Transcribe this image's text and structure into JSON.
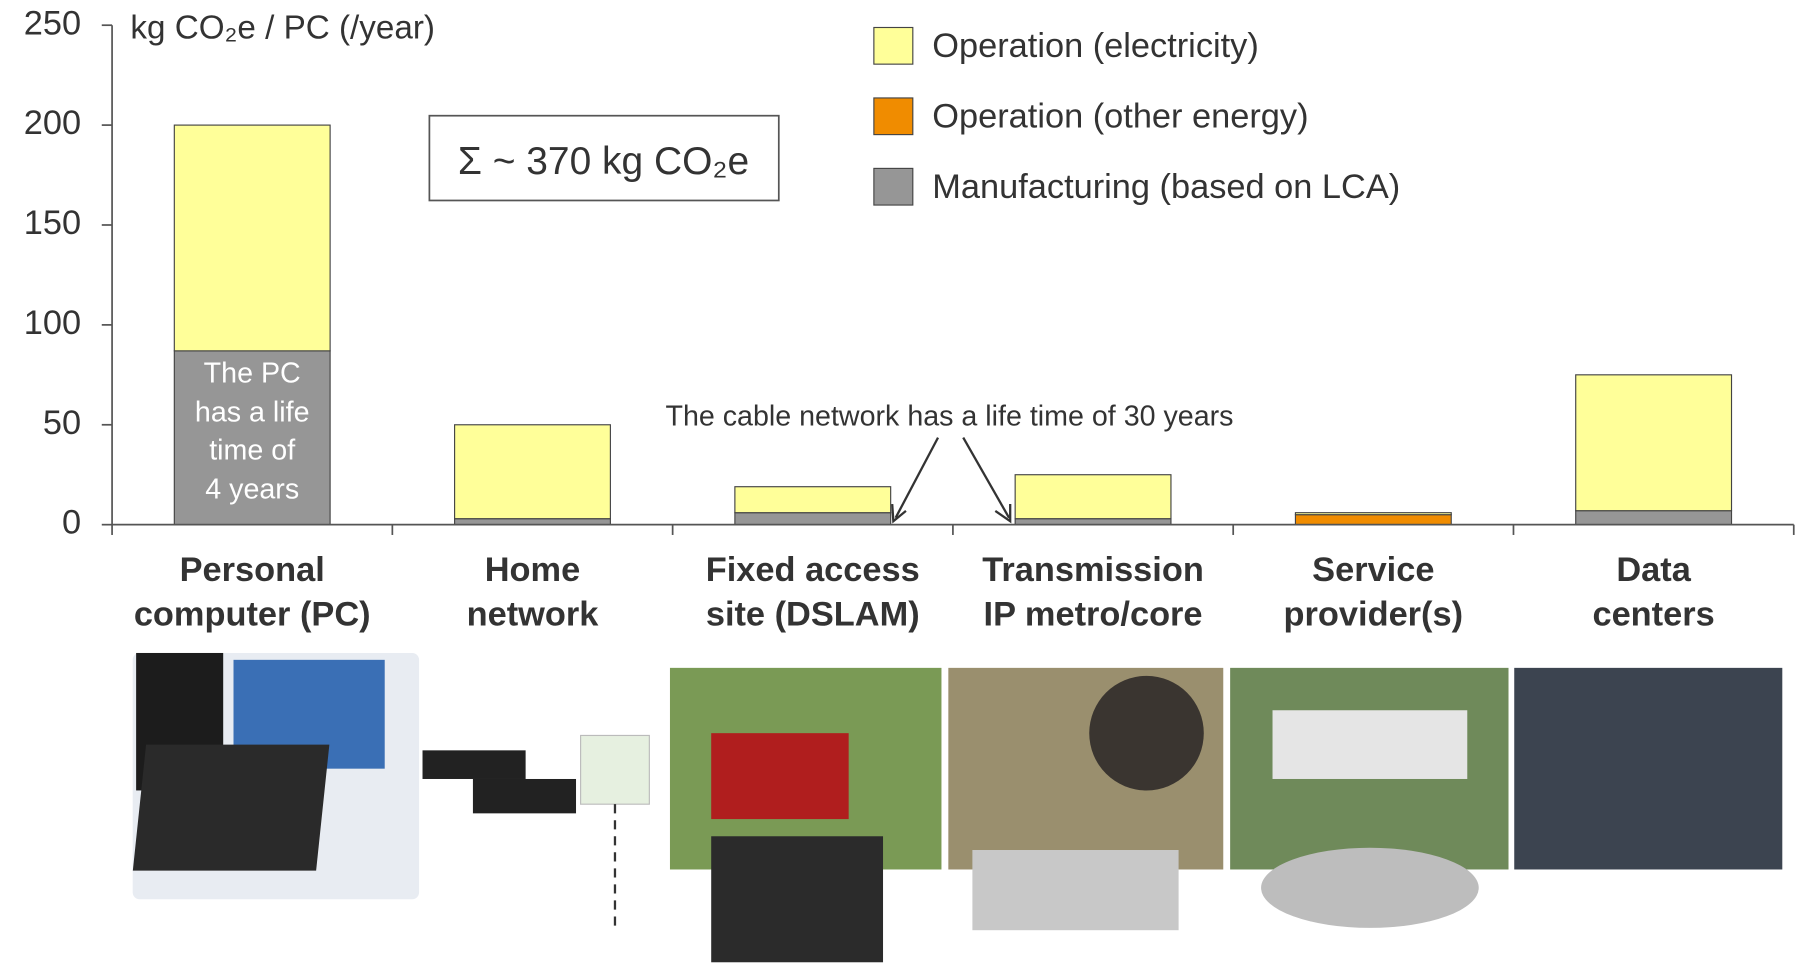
{
  "chart_data": {
    "type": "stacked_bar",
    "y_axis_label": "kg CO₂e / PC (/year)",
    "categories": [
      "Personal\ncomputer (PC)",
      "Home\nnetwork",
      "Fixed access\nsite (DSLAM)",
      "Transmission\nIP metro/core",
      "Service\nprovider(s)",
      "Data\ncenters"
    ],
    "series": [
      {
        "name": "Operation (electricity)",
        "color": "#ffff99",
        "values": [
          113,
          47,
          13,
          22,
          1,
          68
        ]
      },
      {
        "name": "Operation (other energy)",
        "color": "#f08c00",
        "values": [
          0,
          0,
          0,
          0,
          5,
          0
        ]
      },
      {
        "name": "Manufacturing (based on LCA)",
        "color": "#969696",
        "values": [
          87,
          3,
          6,
          3,
          0,
          7
        ]
      }
    ],
    "ylim": [
      0,
      250
    ],
    "yticks": [
      0,
      50,
      100,
      150,
      200,
      250
    ],
    "annotations": {
      "sum": "Σ ~ 370 kg CO₂e",
      "pc_note": "The PC\nhas a life\ntime of\n4 years",
      "cable_note": "The cable network has a life time of 30 years"
    }
  }
}
